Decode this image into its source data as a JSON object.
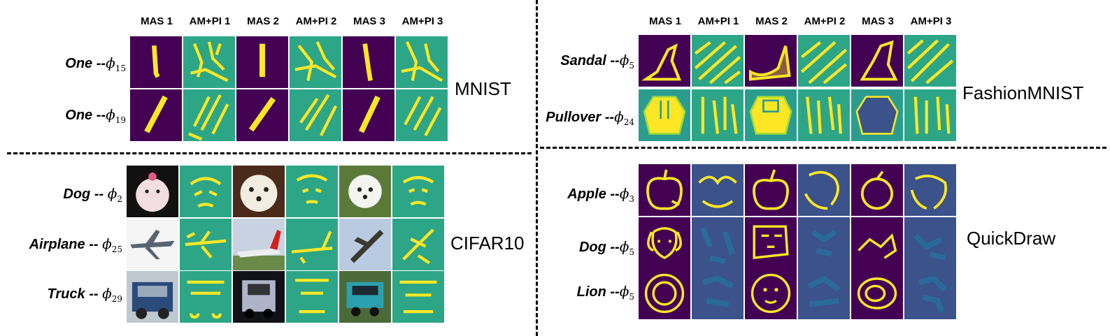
{
  "column_headers": [
    "MAS 1",
    "AM+PI 1",
    "MAS 2",
    "AM+PI 2",
    "MAS 3",
    "AM+PI 3"
  ],
  "panels": {
    "mnist": {
      "dataset": "MNIST",
      "rows": [
        {
          "label": "One",
          "sep": " --",
          "phi": "ϕ",
          "sub": "15"
        },
        {
          "label": "One",
          "sep": " --",
          "phi": "ϕ",
          "sub": "19"
        }
      ]
    },
    "fashion": {
      "dataset": "FashionMNIST",
      "rows": [
        {
          "label": "Sandal",
          "sep": " --",
          "phi": "ϕ",
          "sub": "5"
        },
        {
          "label": "Pullover",
          "sep": " --",
          "phi": "ϕ",
          "sub": "24"
        }
      ]
    },
    "cifar": {
      "dataset": "CIFAR10",
      "rows": [
        {
          "label": "Dog",
          "sep": " -- ",
          "phi": "ϕ",
          "sub": "2"
        },
        {
          "label": "Airplane",
          "sep": " -- ",
          "phi": "ϕ",
          "sub": "25"
        },
        {
          "label": "Truck",
          "sep": " -- ",
          "phi": "ϕ",
          "sub": "29"
        }
      ]
    },
    "quickdraw": {
      "dataset": "QuickDraw",
      "rows": [
        {
          "label": "Apple",
          "sep": " --",
          "phi": "ϕ",
          "sub": "3"
        },
        {
          "label": "Dog",
          "sep": " --",
          "phi": "ϕ",
          "sub": "5"
        },
        {
          "label": "Lion",
          "sep": " --",
          "phi": "ϕ",
          "sub": "5"
        }
      ]
    }
  },
  "colors": {
    "viridis_dark": "#440154",
    "viridis_teal": "#2a9d8f",
    "viridis_yellow": "#fde725",
    "viridis_blue": "#3b528b"
  }
}
